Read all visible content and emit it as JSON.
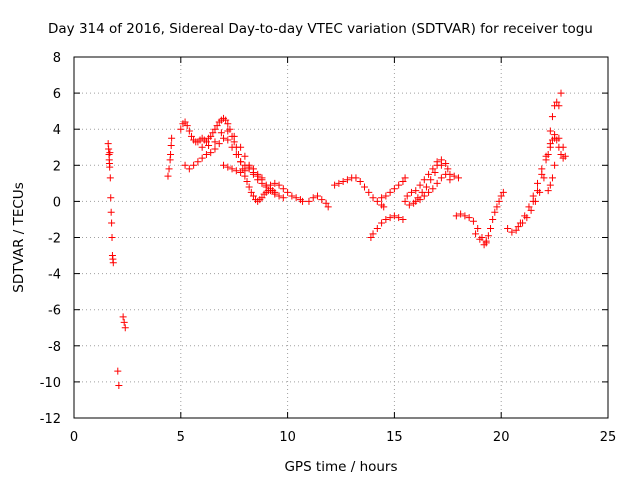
{
  "chart_data": {
    "type": "scatter",
    "title": "Day 314 of 2016, Sidereal Day-to-day VTEC variation (SDTVAR) for receiver togu",
    "xlabel": "GPS time / hours",
    "ylabel": "SDTVAR / TECUs",
    "xlim": [
      0,
      25
    ],
    "ylim": [
      -12,
      8
    ],
    "xticks": [
      0,
      5,
      10,
      15,
      20,
      25
    ],
    "yticks": [
      -12,
      -10,
      -8,
      -6,
      -4,
      -2,
      0,
      2,
      4,
      6,
      8
    ],
    "xtick_labels": [
      "0",
      "5",
      "10",
      "15",
      "20",
      "25"
    ],
    "ytick_labels": [
      "-12",
      "-10",
      "-8",
      "-6",
      "-4",
      "-2",
      "0",
      "2",
      "4",
      "6",
      "8"
    ],
    "grid": true,
    "marker": "+",
    "series": [
      {
        "name": "SDTVAR",
        "color": "#ff0000",
        "points": [
          [
            1.6,
            3.2
          ],
          [
            1.62,
            2.9
          ],
          [
            1.64,
            2.6
          ],
          [
            1.65,
            2.3
          ],
          [
            1.66,
            2.1
          ],
          [
            1.67,
            1.9
          ],
          [
            1.68,
            2.7
          ],
          [
            1.7,
            1.3
          ],
          [
            1.72,
            0.2
          ],
          [
            1.74,
            -0.6
          ],
          [
            1.76,
            -1.2
          ],
          [
            1.78,
            -2.0
          ],
          [
            1.8,
            -3.0
          ],
          [
            1.82,
            -3.2
          ],
          [
            1.84,
            -3.4
          ],
          [
            2.05,
            -9.4
          ],
          [
            2.1,
            -10.2
          ],
          [
            2.3,
            -6.4
          ],
          [
            2.35,
            -6.7
          ],
          [
            2.4,
            -7.0
          ],
          [
            4.4,
            1.4
          ],
          [
            4.45,
            1.8
          ],
          [
            4.5,
            2.3
          ],
          [
            4.52,
            2.6
          ],
          [
            4.55,
            3.1
          ],
          [
            4.57,
            3.5
          ],
          [
            5.0,
            4.0
          ],
          [
            5.1,
            4.3
          ],
          [
            5.2,
            4.4
          ],
          [
            5.3,
            4.2
          ],
          [
            5.4,
            3.9
          ],
          [
            5.5,
            3.6
          ],
          [
            5.6,
            3.4
          ],
          [
            5.7,
            3.3
          ],
          [
            5.8,
            3.3
          ],
          [
            5.9,
            3.4
          ],
          [
            6.0,
            3.5
          ],
          [
            6.1,
            3.4
          ],
          [
            6.2,
            3.3
          ],
          [
            6.3,
            3.5
          ],
          [
            6.4,
            3.6
          ],
          [
            6.5,
            3.8
          ],
          [
            6.6,
            4.0
          ],
          [
            6.7,
            4.2
          ],
          [
            6.8,
            4.4
          ],
          [
            6.9,
            4.5
          ],
          [
            7.0,
            4.6
          ],
          [
            7.1,
            4.5
          ],
          [
            7.2,
            4.3
          ],
          [
            7.3,
            4.0
          ],
          [
            7.4,
            3.6
          ],
          [
            7.5,
            3.3
          ],
          [
            7.6,
            3.0
          ],
          [
            7.7,
            2.6
          ],
          [
            7.8,
            2.2
          ],
          [
            7.9,
            1.8
          ],
          [
            8.0,
            1.4
          ],
          [
            8.1,
            1.1
          ],
          [
            8.2,
            0.8
          ],
          [
            8.3,
            0.5
          ],
          [
            8.4,
            0.3
          ],
          [
            8.5,
            0.1
          ],
          [
            8.6,
            0.0
          ],
          [
            8.7,
            0.1
          ],
          [
            8.8,
            0.2
          ],
          [
            8.9,
            0.4
          ],
          [
            9.0,
            0.5
          ],
          [
            9.1,
            0.6
          ],
          [
            9.2,
            0.7
          ],
          [
            9.3,
            0.6
          ],
          [
            9.4,
            0.5
          ],
          [
            5.2,
            2.0
          ],
          [
            5.4,
            1.8
          ],
          [
            5.6,
            2.0
          ],
          [
            5.8,
            2.2
          ],
          [
            6.0,
            2.4
          ],
          [
            6.2,
            2.6
          ],
          [
            6.4,
            2.7
          ],
          [
            6.6,
            2.9
          ],
          [
            6.8,
            3.2
          ],
          [
            7.0,
            3.5
          ],
          [
            7.2,
            3.4
          ],
          [
            7.4,
            3.0
          ],
          [
            7.6,
            2.6
          ],
          [
            7.8,
            2.2
          ],
          [
            8.0,
            2.0
          ],
          [
            8.2,
            1.8
          ],
          [
            8.4,
            1.5
          ],
          [
            8.6,
            1.2
          ],
          [
            8.8,
            1.0
          ],
          [
            9.0,
            0.8
          ],
          [
            9.2,
            0.9
          ],
          [
            9.4,
            1.0
          ],
          [
            9.6,
            0.9
          ],
          [
            9.8,
            0.7
          ],
          [
            10.0,
            0.5
          ],
          [
            10.2,
            0.3
          ],
          [
            10.4,
            0.2
          ],
          [
            10.6,
            0.1
          ],
          [
            10.7,
            0.0
          ],
          [
            6.0,
            3.0
          ],
          [
            6.3,
            3.1
          ],
          [
            6.6,
            3.3
          ],
          [
            6.9,
            3.8
          ],
          [
            7.2,
            3.9
          ],
          [
            7.5,
            3.6
          ],
          [
            7.8,
            3.0
          ],
          [
            8.0,
            2.5
          ],
          [
            8.2,
            2.0
          ],
          [
            8.4,
            1.6
          ],
          [
            8.6,
            1.4
          ],
          [
            8.8,
            1.3
          ],
          [
            7.0,
            2.0
          ],
          [
            7.2,
            1.9
          ],
          [
            7.4,
            1.8
          ],
          [
            7.6,
            1.7
          ],
          [
            7.8,
            1.6
          ],
          [
            8.0,
            1.7
          ],
          [
            8.2,
            1.9
          ],
          [
            8.4,
            1.8
          ],
          [
            8.6,
            1.5
          ],
          [
            8.8,
            1.2
          ],
          [
            9.0,
            0.9
          ],
          [
            9.2,
            0.6
          ],
          [
            9.4,
            0.4
          ],
          [
            9.6,
            0.3
          ],
          [
            9.8,
            0.2
          ],
          [
            11.0,
            0.0
          ],
          [
            11.2,
            0.2
          ],
          [
            11.4,
            0.3
          ],
          [
            11.6,
            0.1
          ],
          [
            11.8,
            -0.1
          ],
          [
            11.9,
            -0.3
          ],
          [
            12.2,
            0.9
          ],
          [
            12.4,
            1.0
          ],
          [
            12.6,
            1.1
          ],
          [
            12.8,
            1.2
          ],
          [
            13.0,
            1.3
          ],
          [
            13.2,
            1.3
          ],
          [
            13.4,
            1.1
          ],
          [
            13.6,
            0.8
          ],
          [
            13.8,
            0.5
          ],
          [
            14.0,
            0.2
          ],
          [
            14.2,
            0.0
          ],
          [
            14.4,
            -0.2
          ],
          [
            14.5,
            -0.3
          ],
          [
            13.9,
            -2.0
          ],
          [
            14.0,
            -1.8
          ],
          [
            14.2,
            -1.5
          ],
          [
            14.4,
            -1.2
          ],
          [
            14.6,
            -1.0
          ],
          [
            14.8,
            -0.9
          ],
          [
            15.0,
            -0.8
          ],
          [
            15.2,
            -0.9
          ],
          [
            15.4,
            -1.0
          ],
          [
            14.4,
            0.2
          ],
          [
            14.6,
            0.3
          ],
          [
            14.8,
            0.5
          ],
          [
            15.0,
            0.7
          ],
          [
            15.2,
            0.9
          ],
          [
            15.4,
            1.1
          ],
          [
            15.5,
            1.3
          ],
          [
            15.5,
            0.0
          ],
          [
            15.7,
            -0.2
          ],
          [
            15.9,
            -0.1
          ],
          [
            16.1,
            0.2
          ],
          [
            16.3,
            0.5
          ],
          [
            16.5,
            0.8
          ],
          [
            16.7,
            1.2
          ],
          [
            16.9,
            1.6
          ],
          [
            17.0,
            2.0
          ],
          [
            17.2,
            2.3
          ],
          [
            17.4,
            2.1
          ],
          [
            17.5,
            1.8
          ],
          [
            17.6,
            1.5
          ],
          [
            15.6,
            0.3
          ],
          [
            15.8,
            0.5
          ],
          [
            16.0,
            0.6
          ],
          [
            16.2,
            0.9
          ],
          [
            16.4,
            1.2
          ],
          [
            16.6,
            1.5
          ],
          [
            16.8,
            1.8
          ],
          [
            17.0,
            2.2
          ],
          [
            17.2,
            2.0
          ],
          [
            16.0,
            0.0
          ],
          [
            16.2,
            0.1
          ],
          [
            16.4,
            0.3
          ],
          [
            16.6,
            0.5
          ],
          [
            16.8,
            0.7
          ],
          [
            17.0,
            1.0
          ],
          [
            17.2,
            1.3
          ],
          [
            17.4,
            1.5
          ],
          [
            17.6,
            1.2
          ],
          [
            17.8,
            1.4
          ],
          [
            18.0,
            1.3
          ],
          [
            17.9,
            -0.8
          ],
          [
            18.1,
            -0.7
          ],
          [
            18.3,
            -0.8
          ],
          [
            18.5,
            -0.9
          ],
          [
            18.7,
            -1.1
          ],
          [
            18.9,
            -1.5
          ],
          [
            19.1,
            -2.0
          ],
          [
            19.3,
            -2.3
          ],
          [
            18.8,
            -1.8
          ],
          [
            19.0,
            -2.1
          ],
          [
            19.2,
            -2.4
          ],
          [
            19.3,
            -2.2
          ],
          [
            19.4,
            -1.9
          ],
          [
            19.5,
            -1.5
          ],
          [
            19.6,
            -1.0
          ],
          [
            19.7,
            -0.6
          ],
          [
            19.8,
            -0.3
          ],
          [
            19.9,
            0.0
          ],
          [
            20.0,
            0.3
          ],
          [
            20.1,
            0.5
          ],
          [
            20.3,
            -1.5
          ],
          [
            20.5,
            -1.7
          ],
          [
            20.7,
            -1.6
          ],
          [
            20.9,
            -1.2
          ],
          [
            21.1,
            -0.8
          ],
          [
            21.3,
            -0.3
          ],
          [
            21.5,
            0.3
          ],
          [
            21.7,
            1.0
          ],
          [
            21.9,
            1.8
          ],
          [
            22.1,
            2.5
          ],
          [
            22.3,
            3.2
          ],
          [
            22.5,
            3.5
          ],
          [
            22.7,
            3.5
          ],
          [
            22.9,
            3.0
          ],
          [
            23.0,
            2.5
          ],
          [
            21.5,
            0.0
          ],
          [
            21.7,
            0.6
          ],
          [
            21.9,
            1.5
          ],
          [
            22.1,
            2.3
          ],
          [
            22.3,
            3.0
          ],
          [
            22.4,
            3.4
          ],
          [
            22.5,
            3.7
          ],
          [
            22.6,
            3.4
          ],
          [
            22.7,
            3.0
          ],
          [
            22.8,
            2.6
          ],
          [
            22.9,
            2.4
          ],
          [
            20.8,
            -1.4
          ],
          [
            21.0,
            -1.2
          ],
          [
            21.2,
            -0.9
          ],
          [
            21.4,
            -0.5
          ],
          [
            21.6,
            0.0
          ],
          [
            21.8,
            0.5
          ],
          [
            22.0,
            1.3
          ],
          [
            22.2,
            2.6
          ],
          [
            22.3,
            3.9
          ],
          [
            22.4,
            4.7
          ],
          [
            22.5,
            5.3
          ],
          [
            22.6,
            5.5
          ],
          [
            22.7,
            5.3
          ],
          [
            22.8,
            6.0
          ],
          [
            22.2,
            0.6
          ],
          [
            22.3,
            0.9
          ],
          [
            22.4,
            1.3
          ],
          [
            22.5,
            2.0
          ]
        ]
      }
    ]
  }
}
